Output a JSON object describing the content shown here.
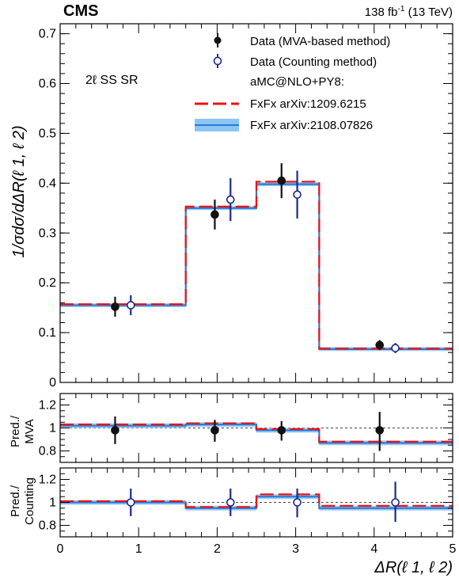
{
  "header": {
    "experiment": "CMS",
    "lumi_value": "138 fb",
    "lumi_exp": "-1",
    "lumi_energy": " (13 TeV)"
  },
  "region_label": "2ℓ SS SR",
  "legend": {
    "data_mva": "Data (MVA-based method)",
    "data_counting": "Data (Counting method)",
    "generator": "aMC@NLO+PY8:",
    "pred_1209": "FxFx arXiv:1209.6215",
    "pred_2108": "FxFx arXiv:2108.07826"
  },
  "chart_data": {
    "type": "line",
    "bin_edges": [
      0,
      1.6,
      2.5,
      3.3,
      5
    ],
    "x_label": "ΔR(ℓ 1, ℓ 2)",
    "colors": {
      "red": "#ee1111",
      "blue": "#2a7bd9",
      "blue_band": "#8cc4f2",
      "data": "#111111",
      "counting": "#1a2a8a"
    },
    "main": {
      "ylabel": "1/σdσ/dΔR(ℓ 1, ℓ 2)",
      "ylim": [
        0,
        0.72
      ],
      "yticks": [
        "0.1",
        "0.2",
        "0.3",
        "0.4",
        "0.5",
        "0.6",
        "0.7"
      ],
      "pred_1209": [
        0.157,
        0.353,
        0.403,
        0.068
      ],
      "pred_2108": [
        0.155,
        0.35,
        0.398,
        0.067
      ],
      "data_mva": {
        "x": [
          0.7,
          1.97,
          2.82,
          4.07
        ],
        "y": [
          0.152,
          0.337,
          0.405,
          0.075
        ],
        "err_lo": [
          0.02,
          0.03,
          0.035,
          0.01
        ],
        "err_hi": [
          0.02,
          0.03,
          0.035,
          0.01
        ]
      },
      "data_counting": {
        "x": [
          0.9,
          2.17,
          3.02,
          4.27
        ],
        "y": [
          0.155,
          0.367,
          0.377,
          0.069
        ],
        "err_lo": [
          0.02,
          0.043,
          0.048,
          0.01
        ],
        "err_hi": [
          0.02,
          0.043,
          0.048,
          0.01
        ]
      }
    },
    "ratio_mva": {
      "ylabel_line1": "Pred./",
      "ylabel_line2": "MVA",
      "ylim": [
        0.7,
        1.3
      ],
      "yticks": [
        "0.8",
        "1",
        "1.2"
      ],
      "pred_1209": [
        1.03,
        1.04,
        0.99,
        0.88
      ],
      "pred_2108": [
        1.02,
        1.03,
        0.98,
        0.87
      ],
      "points": {
        "x": [
          0.7,
          1.97,
          2.82,
          4.07
        ],
        "y": [
          0.98,
          0.98,
          0.98,
          0.98
        ],
        "err_lo": [
          0.12,
          0.1,
          0.09,
          0.18
        ],
        "err_hi": [
          0.12,
          0.09,
          0.08,
          0.16
        ]
      }
    },
    "ratio_counting": {
      "ylabel_line1": "Pred./",
      "ylabel_line2": "Counting",
      "ylim": [
        0.7,
        1.3
      ],
      "yticks": [
        "0.8",
        "1",
        "1.2"
      ],
      "pred_1209": [
        1.01,
        0.96,
        1.07,
        0.97
      ],
      "pred_2108": [
        1.0,
        0.95,
        1.05,
        0.95
      ],
      "points": {
        "x": [
          0.9,
          2.17,
          3.02,
          4.27
        ],
        "y": [
          1.0,
          1.0,
          1.0,
          1.0
        ],
        "err_lo": [
          0.12,
          0.12,
          0.13,
          0.17
        ],
        "err_hi": [
          0.12,
          0.12,
          0.12,
          0.18
        ]
      }
    },
    "xlim": [
      0,
      5
    ],
    "xticks": [
      "0",
      "1",
      "2",
      "3",
      "4",
      "5"
    ]
  }
}
